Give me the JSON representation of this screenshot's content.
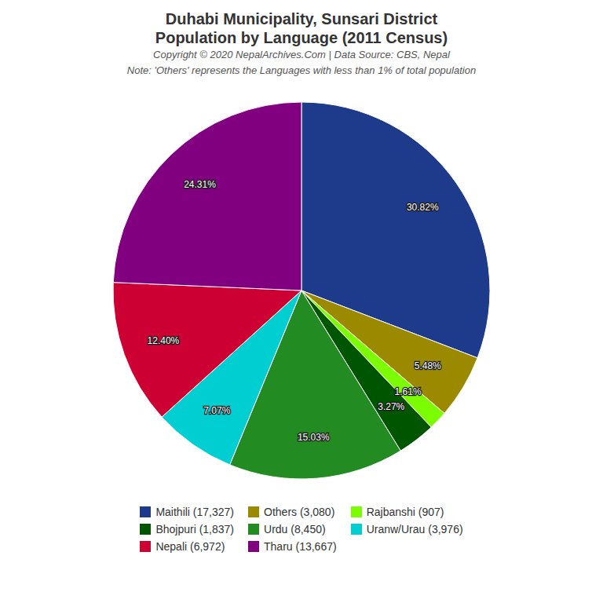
{
  "chart_data": {
    "type": "pie",
    "title": "Duhabi Municipality, Sunsari District",
    "subtitle": "Population by Language (2011 Census)",
    "annotations": [
      "Copyright © 2020 NepalArchives.Com | Data Source: CBS, Nepal",
      "Note: 'Others' represents the Languages with less than 1% of total population"
    ],
    "categories": [
      "Maithili (17,327)",
      "Others (3,080)",
      "Rajbanshi (907)",
      "Bhojpuri (1,837)",
      "Urdu (8,450)",
      "Uranw/Urau (3,976)",
      "Nepali (6,972)",
      "Tharu (13,667)"
    ],
    "values": [
      30.82,
      5.48,
      1.61,
      3.27,
      15.03,
      7.07,
      12.4,
      24.31
    ],
    "value_labels": [
      "30.82%",
      "5.48%",
      "1.61%",
      "3.27%",
      "15.03%",
      "7.07%",
      "12.40%",
      "24.31%"
    ],
    "colors": [
      "#1E3A8A",
      "#9B8A00",
      "#7CFC00",
      "#005500",
      "#228B22",
      "#00CED1",
      "#CC0033",
      "#800080"
    ],
    "data_labels": true,
    "legend": "bottom"
  }
}
